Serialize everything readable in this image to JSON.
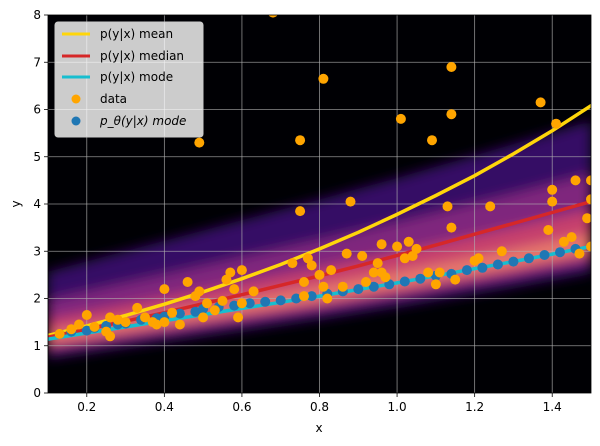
{
  "chart_data": {
    "type": "scatter",
    "title": "",
    "xlabel": "x",
    "ylabel": "y",
    "xlim": [
      0.1,
      1.5
    ],
    "ylim": [
      0,
      8
    ],
    "x_ticks": [
      0.2,
      0.4,
      0.6,
      0.8,
      1.0,
      1.2,
      1.4
    ],
    "x_tick_labels": [
      "0.2",
      "0.4",
      "0.6",
      "0.8",
      "1.0",
      "1.2",
      "1.4"
    ],
    "y_ticks": [
      0,
      1,
      2,
      3,
      4,
      5,
      6,
      7,
      8
    ],
    "y_tick_labels": [
      "0",
      "1",
      "2",
      "3",
      "4",
      "5",
      "6",
      "7",
      "8"
    ],
    "grid": true,
    "legend_position": "top-left",
    "background": "density heatmap (dark purple to orange)",
    "colors": {
      "mean": "#ffd60a",
      "median": "#d62728",
      "mode": "#17becf",
      "data": "#ffa500",
      "model_mode": "#1f77b4",
      "density_dark": "#000004"
    },
    "series": [
      {
        "name": "p(y|x) mean",
        "kind": "line",
        "x": [
          0.1,
          0.2,
          0.3,
          0.4,
          0.5,
          0.6,
          0.7,
          0.8,
          0.9,
          1.0,
          1.1,
          1.2,
          1.3,
          1.4,
          1.5
        ],
        "y": [
          1.22,
          1.42,
          1.64,
          1.88,
          2.14,
          2.42,
          2.72,
          3.05,
          3.4,
          3.78,
          4.18,
          4.6,
          5.06,
          5.55,
          6.08
        ]
      },
      {
        "name": "p(y|x) median",
        "kind": "line",
        "x": [
          0.1,
          0.2,
          0.3,
          0.4,
          0.5,
          0.6,
          0.7,
          0.8,
          0.9,
          1.0,
          1.1,
          1.2,
          1.3,
          1.4,
          1.5
        ],
        "y": [
          1.18,
          1.35,
          1.52,
          1.7,
          1.89,
          2.08,
          2.28,
          2.48,
          2.69,
          2.91,
          3.13,
          3.36,
          3.59,
          3.82,
          4.05
        ]
      },
      {
        "name": "p(y|x) mode",
        "kind": "line",
        "x": [
          0.1,
          0.2,
          0.3,
          0.4,
          0.5,
          0.6,
          0.7,
          0.8,
          0.9,
          1.0,
          1.1,
          1.2,
          1.3,
          1.4,
          1.5
        ],
        "y": [
          1.14,
          1.27,
          1.4,
          1.53,
          1.66,
          1.79,
          1.92,
          2.05,
          2.19,
          2.33,
          2.48,
          2.63,
          2.78,
          2.94,
          3.1
        ]
      },
      {
        "name": "data",
        "kind": "scatter",
        "points": [
          [
            0.13,
            1.25
          ],
          [
            0.16,
            1.35
          ],
          [
            0.18,
            1.45
          ],
          [
            0.2,
            1.65
          ],
          [
            0.22,
            1.4
          ],
          [
            0.25,
            1.3
          ],
          [
            0.26,
            1.6
          ],
          [
            0.26,
            1.2
          ],
          [
            0.28,
            1.55
          ],
          [
            0.3,
            1.5
          ],
          [
            0.33,
            1.8
          ],
          [
            0.35,
            1.6
          ],
          [
            0.37,
            1.5
          ],
          [
            0.38,
            1.45
          ],
          [
            0.4,
            2.2
          ],
          [
            0.4,
            1.5
          ],
          [
            0.42,
            1.7
          ],
          [
            0.44,
            1.45
          ],
          [
            0.46,
            2.35
          ],
          [
            0.48,
            2.05
          ],
          [
            0.49,
            5.3
          ],
          [
            0.49,
            2.15
          ],
          [
            0.5,
            1.6
          ],
          [
            0.51,
            1.9
          ],
          [
            0.53,
            1.75
          ],
          [
            0.55,
            1.95
          ],
          [
            0.56,
            2.4
          ],
          [
            0.57,
            2.55
          ],
          [
            0.58,
            2.2
          ],
          [
            0.59,
            1.6
          ],
          [
            0.6,
            2.6
          ],
          [
            0.6,
            1.9
          ],
          [
            0.63,
            2.15
          ],
          [
            0.68,
            8.05
          ],
          [
            0.73,
            2.75
          ],
          [
            0.75,
            5.35
          ],
          [
            0.75,
            3.85
          ],
          [
            0.76,
            2.35
          ],
          [
            0.76,
            2.05
          ],
          [
            0.77,
            2.85
          ],
          [
            0.78,
            2.7
          ],
          [
            0.8,
            2.5
          ],
          [
            0.81,
            6.65
          ],
          [
            0.81,
            2.25
          ],
          [
            0.82,
            2.0
          ],
          [
            0.83,
            2.6
          ],
          [
            0.86,
            2.25
          ],
          [
            0.87,
            2.95
          ],
          [
            0.88,
            4.05
          ],
          [
            0.91,
            2.9
          ],
          [
            0.92,
            2.35
          ],
          [
            0.94,
            2.55
          ],
          [
            0.95,
            2.75
          ],
          [
            0.96,
            2.55
          ],
          [
            0.96,
            3.15
          ],
          [
            0.97,
            2.45
          ],
          [
            1.0,
            3.1
          ],
          [
            1.01,
            5.8
          ],
          [
            1.02,
            2.85
          ],
          [
            1.03,
            3.2
          ],
          [
            1.04,
            2.9
          ],
          [
            1.05,
            3.05
          ],
          [
            1.08,
            2.55
          ],
          [
            1.09,
            5.35
          ],
          [
            1.1,
            2.3
          ],
          [
            1.11,
            2.55
          ],
          [
            1.13,
            3.95
          ],
          [
            1.14,
            6.9
          ],
          [
            1.14,
            5.9
          ],
          [
            1.14,
            3.5
          ],
          [
            1.15,
            2.4
          ],
          [
            1.2,
            2.8
          ],
          [
            1.21,
            2.85
          ],
          [
            1.24,
            3.95
          ],
          [
            1.27,
            3.0
          ],
          [
            1.37,
            6.15
          ],
          [
            1.39,
            3.45
          ],
          [
            1.4,
            4.3
          ],
          [
            1.4,
            4.05
          ],
          [
            1.41,
            5.7
          ],
          [
            1.43,
            3.2
          ],
          [
            1.45,
            3.3
          ],
          [
            1.46,
            4.5
          ],
          [
            1.47,
            2.95
          ],
          [
            1.49,
            3.7
          ],
          [
            1.5,
            4.5
          ],
          [
            1.5,
            4.1
          ],
          [
            1.5,
            3.1
          ]
        ]
      },
      {
        "name": "p_θ(y|x) mode",
        "kind": "scatter",
        "points": [
          [
            0.13,
            1.25
          ],
          [
            0.16,
            1.3
          ],
          [
            0.2,
            1.32
          ],
          [
            0.22,
            1.38
          ],
          [
            0.25,
            1.42
          ],
          [
            0.28,
            1.45
          ],
          [
            0.3,
            1.47
          ],
          [
            0.34,
            1.55
          ],
          [
            0.38,
            1.58
          ],
          [
            0.4,
            1.62
          ],
          [
            0.44,
            1.68
          ],
          [
            0.48,
            1.72
          ],
          [
            0.5,
            1.78
          ],
          [
            0.54,
            1.82
          ],
          [
            0.58,
            1.85
          ],
          [
            0.62,
            1.9
          ],
          [
            0.66,
            1.93
          ],
          [
            0.7,
            1.96
          ],
          [
            0.74,
            2.0
          ],
          [
            0.78,
            2.05
          ],
          [
            0.82,
            2.1
          ],
          [
            0.86,
            2.15
          ],
          [
            0.9,
            2.2
          ],
          [
            0.94,
            2.25
          ],
          [
            0.98,
            2.3
          ],
          [
            1.02,
            2.36
          ],
          [
            1.06,
            2.42
          ],
          [
            1.1,
            2.48
          ],
          [
            1.14,
            2.52
          ],
          [
            1.18,
            2.6
          ],
          [
            1.22,
            2.65
          ],
          [
            1.26,
            2.72
          ],
          [
            1.3,
            2.78
          ],
          [
            1.34,
            2.85
          ],
          [
            1.38,
            2.92
          ],
          [
            1.42,
            2.98
          ],
          [
            1.46,
            3.05
          ],
          [
            1.5,
            3.1
          ]
        ]
      }
    ]
  },
  "legend": {
    "items": [
      {
        "label": "p(y|x) mean",
        "kind": "line"
      },
      {
        "label": "p(y|x) median",
        "kind": "line"
      },
      {
        "label": "p(y|x) mode",
        "kind": "line"
      },
      {
        "label": "data",
        "kind": "marker"
      },
      {
        "label": "p_θ(y|x) mode",
        "kind": "marker"
      }
    ]
  }
}
